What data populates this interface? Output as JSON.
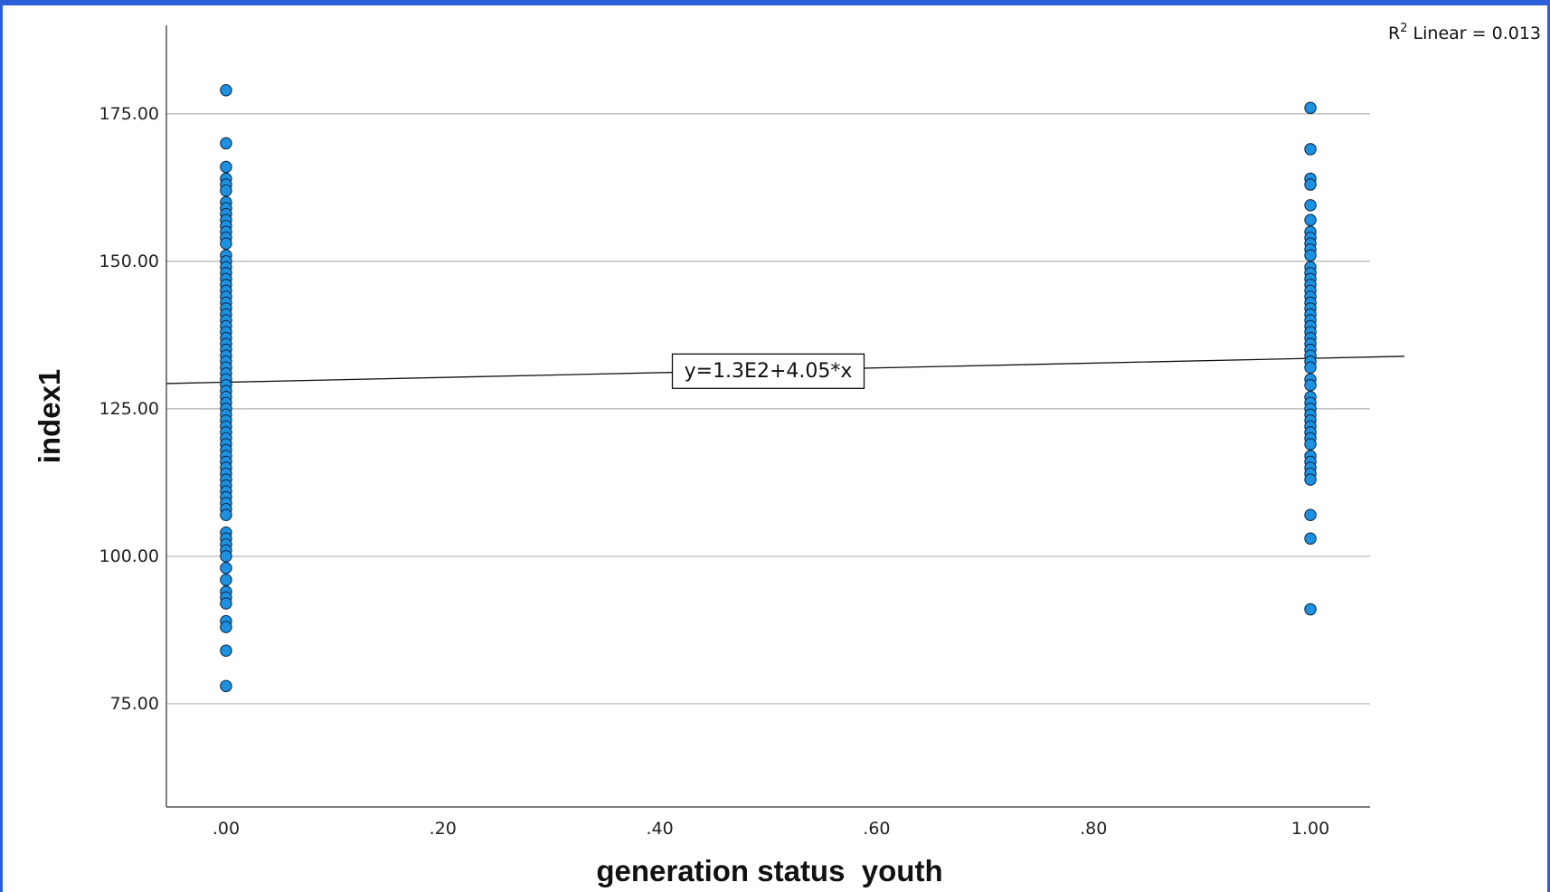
{
  "chart_data": {
    "type": "scatter",
    "title": "",
    "xlabel": "generation status  youth",
    "ylabel": "index1",
    "xlim": [
      -0.055,
      1.055
    ],
    "ylim": [
      57.5,
      190
    ],
    "grid": "horizontal",
    "x_tick_labels": [
      {
        "value": 0.0,
        "label": ".00"
      },
      {
        "value": 0.2,
        "label": ".20"
      },
      {
        "value": 0.4,
        "label": ".40"
      },
      {
        "value": 0.6,
        "label": ".60"
      },
      {
        "value": 0.8,
        "label": ".80"
      },
      {
        "value": 1.0,
        "label": "1.00"
      }
    ],
    "y_tick_labels": [
      {
        "value": 75,
        "label": "75.00"
      },
      {
        "value": 100,
        "label": "100.00"
      },
      {
        "value": 125,
        "label": "125.00"
      },
      {
        "value": 150,
        "label": "150.00"
      },
      {
        "value": 175,
        "label": "175.00"
      }
    ],
    "point_color": "#1e90e0",
    "point_edge_color": "#0a2f55",
    "points": [
      {
        "x": 0,
        "y": 179
      },
      {
        "x": 0,
        "y": 170
      },
      {
        "x": 0,
        "y": 166
      },
      {
        "x": 0,
        "y": 164
      },
      {
        "x": 0,
        "y": 163
      },
      {
        "x": 0,
        "y": 162
      },
      {
        "x": 0,
        "y": 160
      },
      {
        "x": 0,
        "y": 159
      },
      {
        "x": 0,
        "y": 158
      },
      {
        "x": 0,
        "y": 157
      },
      {
        "x": 0,
        "y": 156
      },
      {
        "x": 0,
        "y": 155
      },
      {
        "x": 0,
        "y": 154
      },
      {
        "x": 0,
        "y": 153
      },
      {
        "x": 0,
        "y": 151
      },
      {
        "x": 0,
        "y": 150
      },
      {
        "x": 0,
        "y": 149
      },
      {
        "x": 0,
        "y": 148
      },
      {
        "x": 0,
        "y": 147
      },
      {
        "x": 0,
        "y": 146
      },
      {
        "x": 0,
        "y": 145
      },
      {
        "x": 0,
        "y": 144
      },
      {
        "x": 0,
        "y": 143
      },
      {
        "x": 0,
        "y": 142
      },
      {
        "x": 0,
        "y": 141
      },
      {
        "x": 0,
        "y": 140
      },
      {
        "x": 0,
        "y": 139
      },
      {
        "x": 0,
        "y": 138
      },
      {
        "x": 0,
        "y": 137
      },
      {
        "x": 0,
        "y": 136
      },
      {
        "x": 0,
        "y": 135
      },
      {
        "x": 0,
        "y": 134
      },
      {
        "x": 0,
        "y": 133
      },
      {
        "x": 0,
        "y": 132
      },
      {
        "x": 0,
        "y": 131
      },
      {
        "x": 0,
        "y": 130
      },
      {
        "x": 0,
        "y": 129
      },
      {
        "x": 0,
        "y": 128
      },
      {
        "x": 0,
        "y": 127
      },
      {
        "x": 0,
        "y": 126
      },
      {
        "x": 0,
        "y": 125
      },
      {
        "x": 0,
        "y": 124
      },
      {
        "x": 0,
        "y": 123
      },
      {
        "x": 0,
        "y": 122
      },
      {
        "x": 0,
        "y": 121
      },
      {
        "x": 0,
        "y": 120
      },
      {
        "x": 0,
        "y": 119
      },
      {
        "x": 0,
        "y": 118
      },
      {
        "x": 0,
        "y": 117
      },
      {
        "x": 0,
        "y": 116
      },
      {
        "x": 0,
        "y": 115
      },
      {
        "x": 0,
        "y": 114
      },
      {
        "x": 0,
        "y": 113
      },
      {
        "x": 0,
        "y": 112
      },
      {
        "x": 0,
        "y": 111
      },
      {
        "x": 0,
        "y": 110
      },
      {
        "x": 0,
        "y": 109
      },
      {
        "x": 0,
        "y": 108
      },
      {
        "x": 0,
        "y": 107
      },
      {
        "x": 0,
        "y": 104
      },
      {
        "x": 0,
        "y": 103
      },
      {
        "x": 0,
        "y": 102
      },
      {
        "x": 0,
        "y": 101
      },
      {
        "x": 0,
        "y": 100
      },
      {
        "x": 0,
        "y": 98
      },
      {
        "x": 0,
        "y": 96
      },
      {
        "x": 0,
        "y": 94
      },
      {
        "x": 0,
        "y": 93
      },
      {
        "x": 0,
        "y": 92
      },
      {
        "x": 0,
        "y": 89
      },
      {
        "x": 0,
        "y": 88
      },
      {
        "x": 0,
        "y": 84
      },
      {
        "x": 0,
        "y": 78
      },
      {
        "x": 1,
        "y": 176
      },
      {
        "x": 1,
        "y": 169
      },
      {
        "x": 1,
        "y": 164
      },
      {
        "x": 1,
        "y": 163
      },
      {
        "x": 1,
        "y": 159.5
      },
      {
        "x": 1,
        "y": 157
      },
      {
        "x": 1,
        "y": 155
      },
      {
        "x": 1,
        "y": 154
      },
      {
        "x": 1,
        "y": 153
      },
      {
        "x": 1,
        "y": 152
      },
      {
        "x": 1,
        "y": 151
      },
      {
        "x": 1,
        "y": 149
      },
      {
        "x": 1,
        "y": 148
      },
      {
        "x": 1,
        "y": 147
      },
      {
        "x": 1,
        "y": 146
      },
      {
        "x": 1,
        "y": 145
      },
      {
        "x": 1,
        "y": 144
      },
      {
        "x": 1,
        "y": 143
      },
      {
        "x": 1,
        "y": 142
      },
      {
        "x": 1,
        "y": 141
      },
      {
        "x": 1,
        "y": 140
      },
      {
        "x": 1,
        "y": 139
      },
      {
        "x": 1,
        "y": 138
      },
      {
        "x": 1,
        "y": 137
      },
      {
        "x": 1,
        "y": 136
      },
      {
        "x": 1,
        "y": 135
      },
      {
        "x": 1,
        "y": 134
      },
      {
        "x": 1,
        "y": 133
      },
      {
        "x": 1,
        "y": 132
      },
      {
        "x": 1,
        "y": 130
      },
      {
        "x": 1,
        "y": 129
      },
      {
        "x": 1,
        "y": 127
      },
      {
        "x": 1,
        "y": 126
      },
      {
        "x": 1,
        "y": 125
      },
      {
        "x": 1,
        "y": 124
      },
      {
        "x": 1,
        "y": 123
      },
      {
        "x": 1,
        "y": 122
      },
      {
        "x": 1,
        "y": 121
      },
      {
        "x": 1,
        "y": 120
      },
      {
        "x": 1,
        "y": 119
      },
      {
        "x": 1,
        "y": 117
      },
      {
        "x": 1,
        "y": 116
      },
      {
        "x": 1,
        "y": 115
      },
      {
        "x": 1,
        "y": 114
      },
      {
        "x": 1,
        "y": 113
      },
      {
        "x": 1,
        "y": 107
      },
      {
        "x": 1,
        "y": 103
      },
      {
        "x": 1,
        "y": 91
      }
    ],
    "fit_line": {
      "intercept": 129.5,
      "slope": 4.05,
      "equation_label": "y=1.3E2+4.05*x",
      "label_x": 0.5
    },
    "r2_label": {
      "prefix": "R",
      "sup": "2",
      "text": " Linear = 0.013"
    }
  }
}
